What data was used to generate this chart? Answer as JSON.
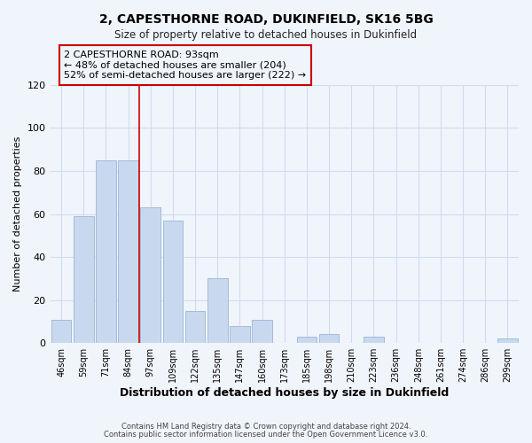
{
  "title": "2, CAPESTHORNE ROAD, DUKINFIELD, SK16 5BG",
  "subtitle": "Size of property relative to detached houses in Dukinfield",
  "xlabel": "Distribution of detached houses by size in Dukinfield",
  "ylabel": "Number of detached properties",
  "bin_labels": [
    "46sqm",
    "59sqm",
    "71sqm",
    "84sqm",
    "97sqm",
    "109sqm",
    "122sqm",
    "135sqm",
    "147sqm",
    "160sqm",
    "173sqm",
    "185sqm",
    "198sqm",
    "210sqm",
    "223sqm",
    "236sqm",
    "248sqm",
    "261sqm",
    "274sqm",
    "286sqm",
    "299sqm"
  ],
  "bin_counts": [
    11,
    59,
    85,
    85,
    63,
    57,
    15,
    30,
    8,
    11,
    0,
    3,
    4,
    0,
    3,
    0,
    0,
    0,
    0,
    0,
    2
  ],
  "bar_color": "#c8d9ef",
  "bar_edge_color": "#9ab4d4",
  "vline_x_index": 4,
  "vline_color": "#cc0000",
  "annotation_text": "2 CAPESTHORNE ROAD: 93sqm\n← 48% of detached houses are smaller (204)\n52% of semi-detached houses are larger (222) →",
  "annotation_box_edge_color": "#cc0000",
  "ylim": [
    0,
    120
  ],
  "yticks": [
    0,
    20,
    40,
    60,
    80,
    100,
    120
  ],
  "footer_line1": "Contains HM Land Registry data © Crown copyright and database right 2024.",
  "footer_line2": "Contains public sector information licensed under the Open Government Licence v3.0.",
  "background_color": "#f0f4fb",
  "grid_color": "#d0ddf0"
}
